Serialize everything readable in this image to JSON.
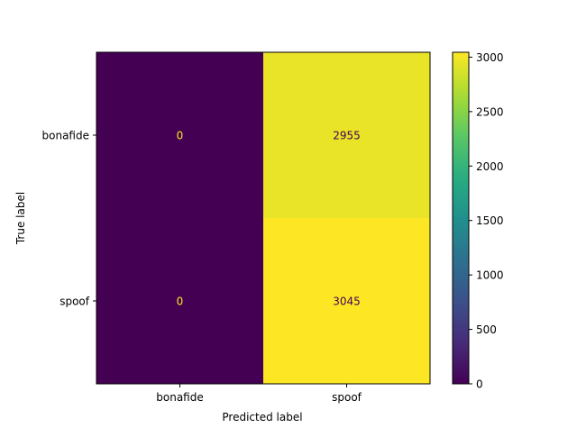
{
  "chart_data": {
    "type": "heatmap",
    "title": "",
    "xlabel": "Predicted label",
    "ylabel": "True label",
    "x_categories": [
      "bonafide",
      "spoof"
    ],
    "y_categories": [
      "bonafide",
      "spoof"
    ],
    "values": [
      [
        0,
        2955
      ],
      [
        0,
        3045
      ]
    ],
    "colormap": "viridis",
    "colorbar": {
      "min": 0,
      "max": 3045,
      "ticks": [
        0,
        500,
        1000,
        1500,
        2000,
        2500,
        3000
      ]
    },
    "cell_text_colors": {
      "on_dark": "#fde725",
      "on_light": "#440154"
    }
  }
}
